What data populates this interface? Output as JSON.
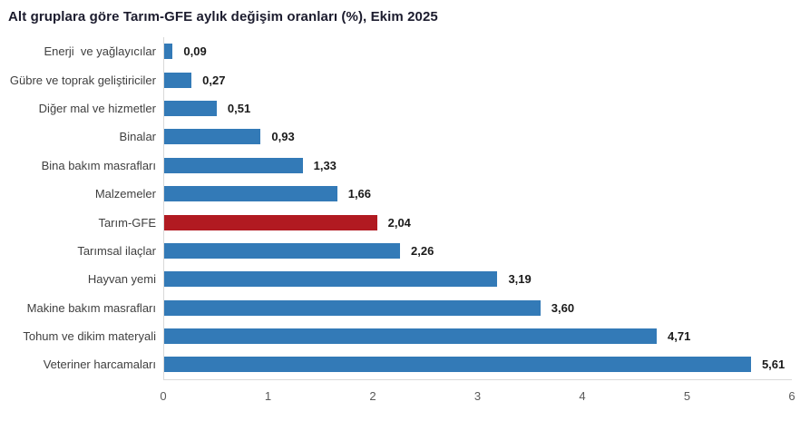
{
  "title": "Alt gruplara göre Tarım-GFE aylık değişim oranları (%), Ekim 2025",
  "chart_data": {
    "type": "bar",
    "orientation": "horizontal",
    "title": "Alt gruplara göre Tarım-GFE aylık değişim oranları (%), Ekim 2025",
    "categories": [
      "Enerji  ve yağlayıcılar",
      "Gübre ve toprak geliştiriciler",
      "Diğer mal ve hizmetler",
      "Binalar",
      "Bina bakım masrafları",
      "Malzemeler",
      "Tarım-GFE",
      "Tarımsal ilaçlar",
      "Hayvan yemi",
      "Makine bakım masrafları",
      "Tohum ve dikim materyali",
      "Veteriner harcamaları"
    ],
    "values": [
      0.09,
      0.27,
      0.51,
      0.93,
      1.33,
      1.66,
      2.04,
      2.26,
      3.19,
      3.6,
      4.71,
      5.61
    ],
    "value_labels": [
      "0,09",
      "0,27",
      "0,51",
      "0,93",
      "1,33",
      "1,66",
      "2,04",
      "2,26",
      "3,19",
      "3,60",
      "4,71",
      "5,61"
    ],
    "highlight_category": "Tarım-GFE",
    "colors": {
      "bar_default": "#337ab7",
      "bar_highlight": "#b11a21",
      "axis_line": "#d9d9d9",
      "tick_text": "#595959",
      "category_text": "#404040",
      "value_text": "#1a1a1a",
      "title_text": "#1c1c2e"
    },
    "xlabel": "",
    "ylabel": "",
    "xlim": [
      0,
      6
    ],
    "x_ticks": [
      "0",
      "1",
      "2",
      "3",
      "4",
      "5",
      "6"
    ],
    "grid": false,
    "legend": false
  }
}
